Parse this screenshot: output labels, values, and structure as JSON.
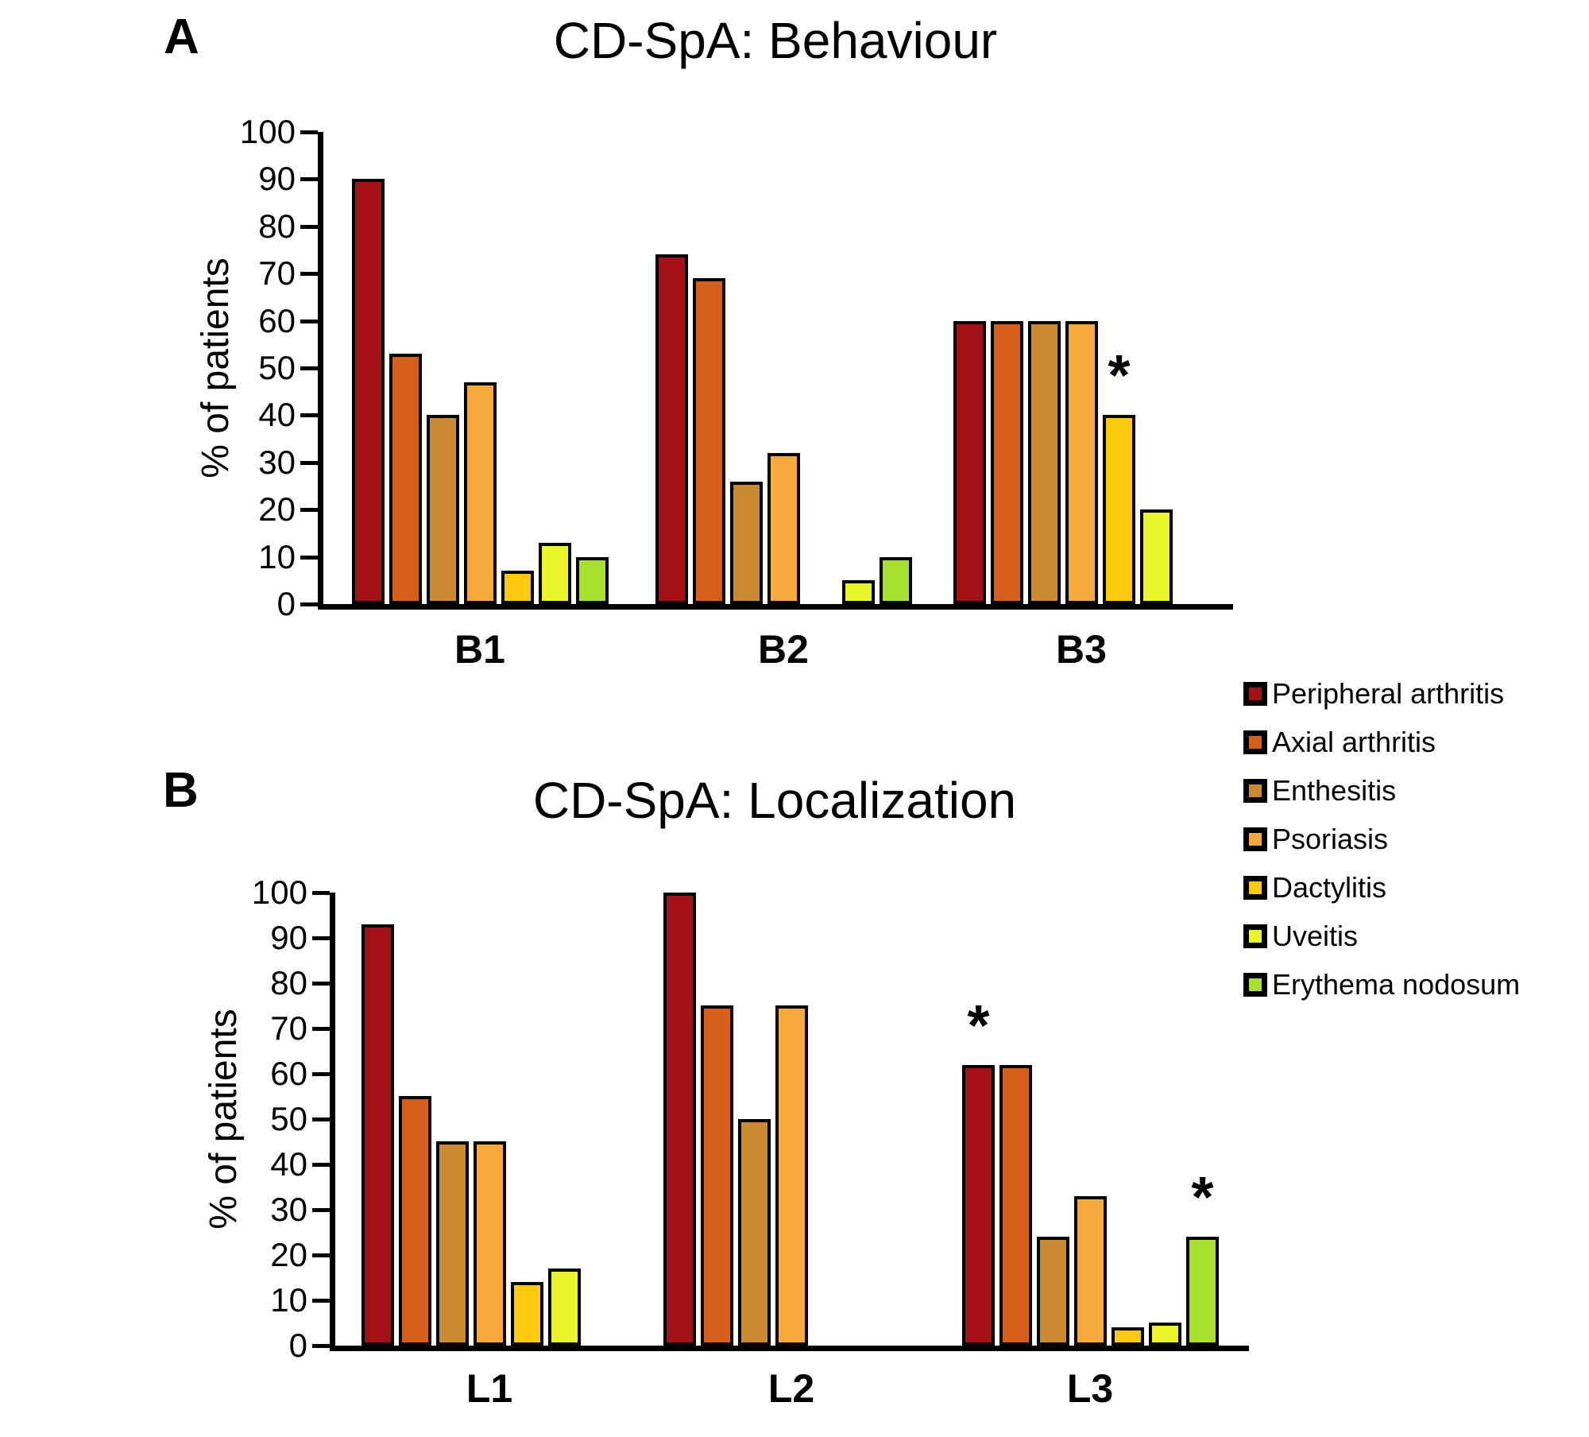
{
  "chart_data": [
    {
      "type": "bar",
      "panel_label": "A",
      "title": "CD-SpA: Behaviour",
      "ylabel": "% of patients",
      "ylim": [
        0,
        100
      ],
      "yticks": [
        0,
        10,
        20,
        30,
        40,
        50,
        60,
        70,
        80,
        90,
        100
      ],
      "grid": false,
      "categories": [
        "B1",
        "B2",
        "B3"
      ],
      "series": [
        {
          "name": "Peripheral arthritis",
          "color": "#A31015",
          "values": [
            90,
            74,
            60
          ]
        },
        {
          "name": "Axial arthritis",
          "color": "#D4601C",
          "values": [
            53,
            69,
            60
          ]
        },
        {
          "name": "Enthesitis",
          "color": "#C98A30",
          "values": [
            40,
            26,
            60
          ]
        },
        {
          "name": "Psoriasis",
          "color": "#F7A93C",
          "values": [
            47,
            32,
            60
          ]
        },
        {
          "name": "Dactylitis",
          "color": "#FFC90E",
          "values": [
            7,
            0,
            40
          ]
        },
        {
          "name": "Uveitis",
          "color": "#EBF52B",
          "values": [
            13,
            5,
            20
          ]
        },
        {
          "name": "Erythema nodosum",
          "color": "#A8E02E",
          "values": [
            10,
            10,
            0
          ]
        }
      ],
      "annotations": [
        {
          "category": "B3",
          "series": "Dactylitis",
          "text": "*"
        }
      ]
    },
    {
      "type": "bar",
      "panel_label": "B",
      "title": "CD-SpA: Localization",
      "ylabel": "% of patients",
      "ylim": [
        0,
        100
      ],
      "yticks": [
        0,
        10,
        20,
        30,
        40,
        50,
        60,
        70,
        80,
        90,
        100
      ],
      "grid": false,
      "categories": [
        "L1",
        "L2",
        "L3"
      ],
      "series": [
        {
          "name": "Peripheral arthritis",
          "color": "#A31015",
          "values": [
            93,
            100,
            62
          ]
        },
        {
          "name": "Axial arthritis",
          "color": "#D4601C",
          "values": [
            55,
            75,
            62
          ]
        },
        {
          "name": "Enthesitis",
          "color": "#C98A30",
          "values": [
            45,
            50,
            24
          ]
        },
        {
          "name": "Psoriasis",
          "color": "#F7A93C",
          "values": [
            45,
            75,
            33
          ]
        },
        {
          "name": "Dactylitis",
          "color": "#FFC90E",
          "values": [
            14,
            0,
            4
          ]
        },
        {
          "name": "Uveitis",
          "color": "#EBF52B",
          "values": [
            17,
            0,
            5
          ]
        },
        {
          "name": "Erythema nodosum",
          "color": "#A8E02E",
          "values": [
            0,
            0,
            24
          ]
        }
      ],
      "annotations": [
        {
          "category": "L3",
          "series": "Peripheral arthritis",
          "text": "*"
        },
        {
          "category": "L3",
          "series": "Erythema nodosum",
          "text": "*"
        }
      ]
    }
  ],
  "legend": {
    "position": "right",
    "entries": [
      {
        "label": "Peripheral arthritis",
        "color": "#A31015"
      },
      {
        "label": "Axial arthritis",
        "color": "#D4601C"
      },
      {
        "label": "Enthesitis",
        "color": "#C98A30"
      },
      {
        "label": "Psoriasis",
        "color": "#F7A93C"
      },
      {
        "label": "Dactylitis",
        "color": "#FFC90E"
      },
      {
        "label": "Uveitis",
        "color": "#EBF52B"
      },
      {
        "label": "Erythema nodosum",
        "color": "#A8E02E"
      }
    ]
  }
}
